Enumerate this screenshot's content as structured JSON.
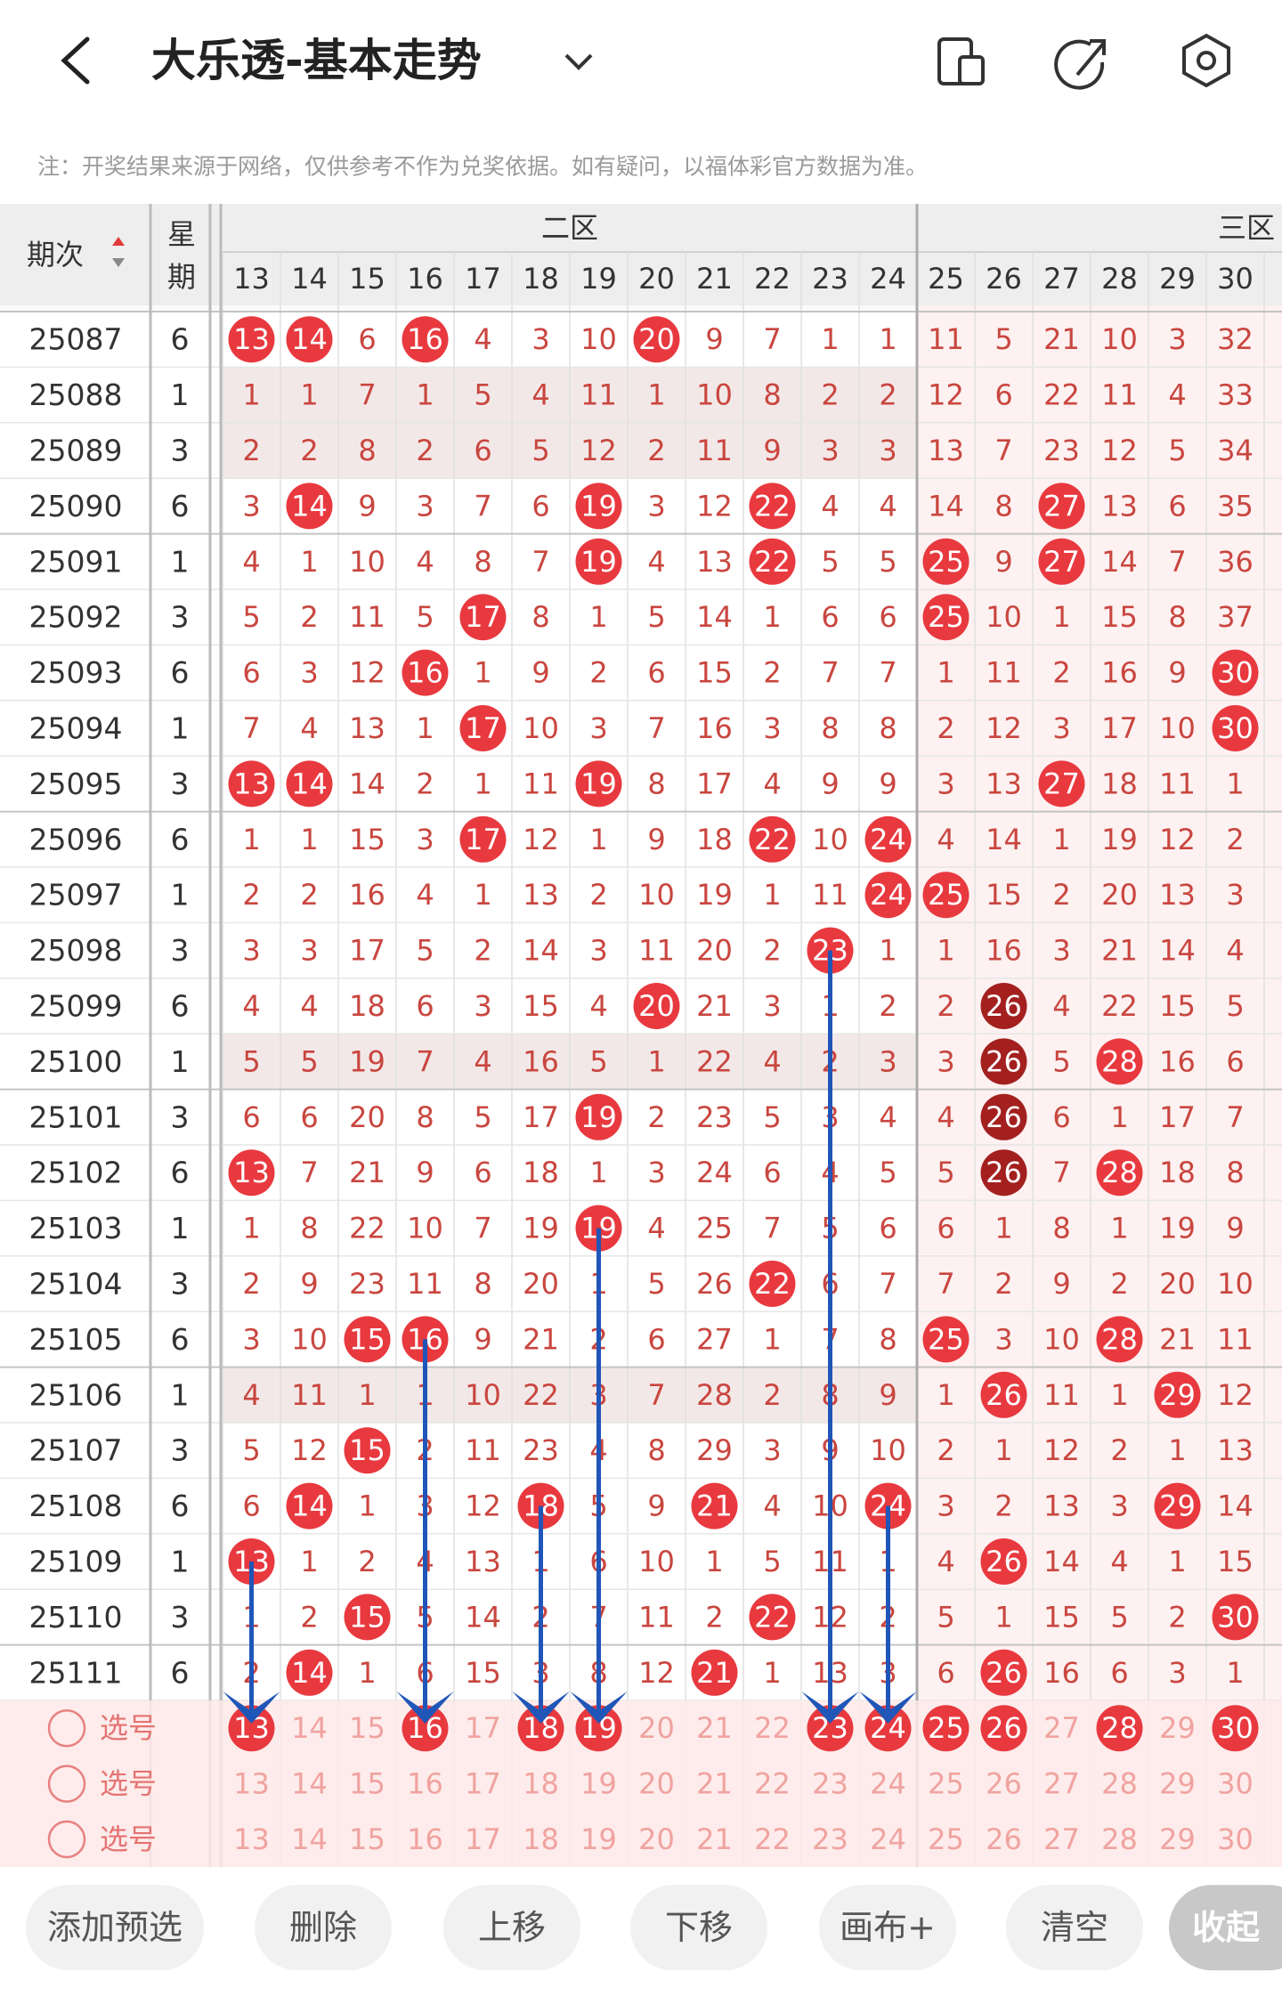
{
  "header": {
    "title": "大乐透-基本走势"
  },
  "note": "注：开奖结果来源于网络，仅供参考不作为兑奖依据。如有疑问，以福体彩官方数据为准。",
  "table": {
    "issue_header": "期次",
    "week_header": "星期",
    "zones": [
      {
        "label": "二区",
        "columns": [
          13,
          14,
          15,
          16,
          17,
          18,
          19,
          20,
          21,
          22,
          23,
          24
        ]
      },
      {
        "label": "三区",
        "columns": [
          25,
          26,
          27,
          28,
          29,
          30
        ]
      }
    ],
    "rows": [
      {
        "issue": 25087,
        "week": 6,
        "values": [
          13,
          14,
          6,
          16,
          4,
          3,
          10,
          20,
          9,
          7,
          1,
          1,
          11,
          5,
          21,
          10,
          3,
          32
        ],
        "hits": [
          0,
          1,
          3,
          7
        ]
      },
      {
        "issue": 25088,
        "week": 1,
        "values": [
          1,
          1,
          7,
          1,
          5,
          4,
          11,
          1,
          10,
          8,
          2,
          2,
          12,
          6,
          22,
          11,
          4,
          33
        ],
        "hits": [],
        "shade": true
      },
      {
        "issue": 25089,
        "week": 3,
        "values": [
          2,
          2,
          8,
          2,
          6,
          5,
          12,
          2,
          11,
          9,
          3,
          3,
          13,
          7,
          23,
          12,
          5,
          34
        ],
        "hits": [],
        "shade": true
      },
      {
        "issue": 25090,
        "week": 6,
        "values": [
          3,
          14,
          9,
          3,
          7,
          6,
          19,
          3,
          12,
          22,
          4,
          4,
          14,
          8,
          27,
          13,
          6,
          35
        ],
        "hits": [
          1,
          6,
          9,
          14
        ]
      },
      {
        "issue": 25091,
        "week": 1,
        "values": [
          4,
          1,
          10,
          4,
          8,
          7,
          19,
          4,
          13,
          22,
          5,
          5,
          25,
          9,
          27,
          14,
          7,
          36
        ],
        "hits": [
          6,
          9,
          12,
          14
        ]
      },
      {
        "issue": 25092,
        "week": 3,
        "values": [
          5,
          2,
          11,
          5,
          17,
          8,
          1,
          5,
          14,
          1,
          6,
          6,
          25,
          10,
          1,
          15,
          8,
          37
        ],
        "hits": [
          4,
          12
        ]
      },
      {
        "issue": 25093,
        "week": 6,
        "values": [
          6,
          3,
          12,
          16,
          1,
          9,
          2,
          6,
          15,
          2,
          7,
          7,
          1,
          11,
          2,
          16,
          9,
          30
        ],
        "hits": [
          3,
          17
        ]
      },
      {
        "issue": 25094,
        "week": 1,
        "values": [
          7,
          4,
          13,
          1,
          17,
          10,
          3,
          7,
          16,
          3,
          8,
          8,
          2,
          12,
          3,
          17,
          10,
          30
        ],
        "hits": [
          4,
          17
        ]
      },
      {
        "issue": 25095,
        "week": 3,
        "values": [
          13,
          14,
          14,
          2,
          1,
          11,
          19,
          8,
          17,
          4,
          9,
          9,
          3,
          13,
          27,
          18,
          11,
          1
        ],
        "hits": [
          0,
          1,
          6,
          14
        ]
      },
      {
        "issue": 25096,
        "week": 6,
        "values": [
          1,
          1,
          15,
          3,
          17,
          12,
          1,
          9,
          18,
          22,
          10,
          24,
          4,
          14,
          1,
          19,
          12,
          2
        ],
        "hits": [
          4,
          9,
          11
        ]
      },
      {
        "issue": 25097,
        "week": 1,
        "values": [
          2,
          2,
          16,
          4,
          1,
          13,
          2,
          10,
          19,
          1,
          11,
          24,
          25,
          15,
          2,
          20,
          13,
          3
        ],
        "hits": [
          11,
          12
        ]
      },
      {
        "issue": 25098,
        "week": 3,
        "values": [
          3,
          3,
          17,
          5,
          2,
          14,
          3,
          11,
          20,
          2,
          23,
          1,
          1,
          16,
          3,
          21,
          14,
          4
        ],
        "hits": [
          10
        ]
      },
      {
        "issue": 25099,
        "week": 6,
        "values": [
          4,
          4,
          18,
          6,
          3,
          15,
          4,
          20,
          21,
          3,
          1,
          2,
          2,
          26,
          4,
          22,
          15,
          5
        ],
        "hits": [
          7,
          13
        ],
        "repeat": [
          13
        ]
      },
      {
        "issue": 25100,
        "week": 1,
        "values": [
          5,
          5,
          19,
          7,
          4,
          16,
          5,
          1,
          22,
          4,
          2,
          3,
          3,
          26,
          5,
          28,
          16,
          6
        ],
        "hits": [
          13,
          15
        ],
        "repeat": [
          13
        ],
        "shade": true
      },
      {
        "issue": 25101,
        "week": 3,
        "values": [
          6,
          6,
          20,
          8,
          5,
          17,
          19,
          2,
          23,
          5,
          3,
          4,
          4,
          26,
          6,
          1,
          17,
          7
        ],
        "hits": [
          6,
          13
        ],
        "repeat": [
          13
        ]
      },
      {
        "issue": 25102,
        "week": 6,
        "values": [
          13,
          7,
          21,
          9,
          6,
          18,
          1,
          3,
          24,
          6,
          4,
          5,
          5,
          26,
          7,
          28,
          18,
          8
        ],
        "hits": [
          0,
          13,
          15
        ],
        "repeat": [
          13
        ]
      },
      {
        "issue": 25103,
        "week": 1,
        "values": [
          1,
          8,
          22,
          10,
          7,
          19,
          19,
          4,
          25,
          7,
          5,
          6,
          6,
          1,
          8,
          1,
          19,
          9
        ],
        "hits": [
          6
        ]
      },
      {
        "issue": 25104,
        "week": 3,
        "values": [
          2,
          9,
          23,
          11,
          8,
          20,
          1,
          5,
          26,
          22,
          6,
          7,
          7,
          2,
          9,
          2,
          20,
          10
        ],
        "hits": [
          9
        ]
      },
      {
        "issue": 25105,
        "week": 6,
        "values": [
          3,
          10,
          15,
          16,
          9,
          21,
          2,
          6,
          27,
          1,
          7,
          8,
          25,
          3,
          10,
          28,
          21,
          11
        ],
        "hits": [
          2,
          3,
          12,
          15
        ]
      },
      {
        "issue": 25106,
        "week": 1,
        "values": [
          4,
          11,
          1,
          1,
          10,
          22,
          3,
          7,
          28,
          2,
          8,
          9,
          1,
          26,
          11,
          1,
          29,
          12
        ],
        "hits": [
          13,
          16
        ],
        "shade": true
      },
      {
        "issue": 25107,
        "week": 3,
        "values": [
          5,
          12,
          15,
          2,
          11,
          23,
          4,
          8,
          29,
          3,
          9,
          10,
          2,
          1,
          12,
          2,
          1,
          13
        ],
        "hits": [
          2
        ]
      },
      {
        "issue": 25108,
        "week": 6,
        "values": [
          6,
          14,
          1,
          3,
          12,
          18,
          5,
          9,
          21,
          4,
          10,
          24,
          3,
          2,
          13,
          3,
          29,
          14
        ],
        "hits": [
          1,
          5,
          8,
          11,
          16
        ]
      },
      {
        "issue": 25109,
        "week": 1,
        "values": [
          13,
          1,
          2,
          4,
          13,
          1,
          6,
          10,
          1,
          5,
          11,
          1,
          4,
          26,
          14,
          4,
          1,
          15
        ],
        "hits": [
          0,
          13
        ]
      },
      {
        "issue": 25110,
        "week": 3,
        "values": [
          1,
          2,
          15,
          5,
          14,
          2,
          7,
          11,
          2,
          22,
          12,
          2,
          5,
          1,
          15,
          5,
          2,
          30
        ],
        "hits": [
          2,
          9,
          17
        ]
      },
      {
        "issue": 25111,
        "week": 6,
        "values": [
          2,
          14,
          1,
          6,
          15,
          3,
          8,
          12,
          21,
          1,
          13,
          3,
          6,
          26,
          16,
          6,
          3,
          1
        ],
        "hits": [
          1,
          8,
          13
        ]
      }
    ]
  },
  "picker": {
    "label": "选号",
    "rows": [
      {
        "hits": [
          0,
          3,
          5,
          6,
          10,
          11,
          12,
          13,
          15,
          17
        ]
      },
      {
        "hits": []
      },
      {
        "hits": []
      }
    ]
  },
  "buttons": [
    "添加预选",
    "删除",
    "上移",
    "下移",
    "画布+",
    "清空",
    "收起"
  ]
}
